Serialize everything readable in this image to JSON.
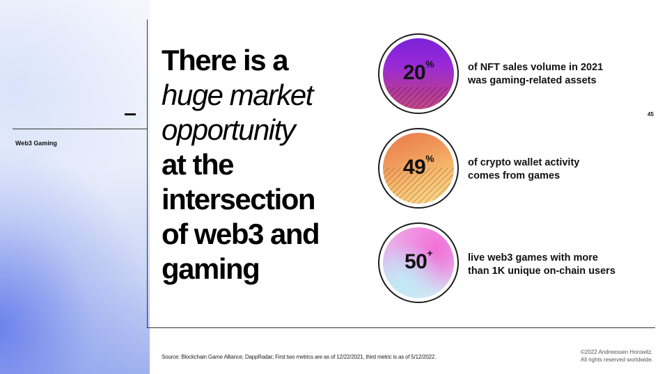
{
  "slide": {
    "section_label": "Web3 Gaming",
    "page_number": "45",
    "headline": {
      "line1": "There is a",
      "line2": "huge market",
      "line3": "opportunity",
      "line4": "at the",
      "line5": "intersection",
      "line6": "of web3 and",
      "line7": "gaming"
    },
    "stats": [
      {
        "value": "20",
        "suffix": "%",
        "line1": "of NFT sales volume in 2021",
        "line2": "was gaming-related assets",
        "color": "#8a27d8"
      },
      {
        "value": "49",
        "suffix": "%",
        "line1": "of crypto wallet activity",
        "line2": "comes from games",
        "color": "#f09a5a"
      },
      {
        "value": "50",
        "suffix": "+",
        "line1": "live web3 games with more",
        "line2": "than 1K unique on-chain users",
        "color": "#e9a6ea"
      }
    ],
    "source": "Source: Blockchain Game Alliance, DappRadar; First two metrics are as of 12/22/2021, third metric is as of 5/12/2022.",
    "copyright_line1": "©2022 Andreessen Horowitz.",
    "copyright_line2": "All rights reserved worldwide."
  }
}
